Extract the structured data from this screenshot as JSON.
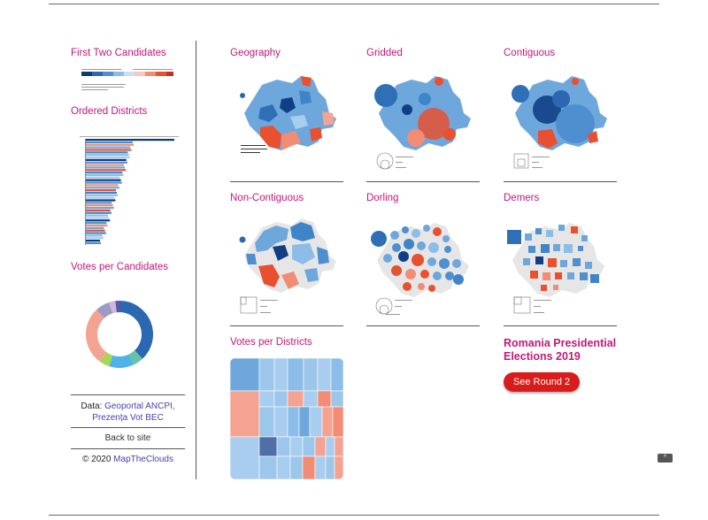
{
  "sidebar": {
    "first_two_title": "First Two Candidates",
    "ordered_districts_title": "Ordered Districts",
    "votes_per_candidates_title": "Votes per Candidates",
    "data_prefix": "Data: ",
    "data_link1": "Geoportal ANCPI,",
    "data_link2": "Prezența Vot BEC",
    "back_to_site": "Back to site",
    "copyright_prefix": "© 2020 ",
    "copyright_link": "MapTheClouds"
  },
  "panels": {
    "geography": "Geography",
    "gridded": "Gridded",
    "contiguous": "Contiguous",
    "non_contiguous": "Non-Contiguous",
    "dorling": "Dorling",
    "demers": "Demers",
    "votes_per_districts": "Votes per Districts"
  },
  "feature": {
    "title": "Romania Presidential Elections 2019",
    "button": "See Round 2"
  },
  "colors": {
    "accent": "#c2187a",
    "blue_dark": "#0d3a7a",
    "blue_mid": "#3f86c6",
    "blue_light": "#9cc7ea",
    "red": "#e8502f",
    "red_light": "#f4a393",
    "button": "#d81b1b"
  },
  "icons": {
    "scroll_top": "chevron-up-icon"
  }
}
